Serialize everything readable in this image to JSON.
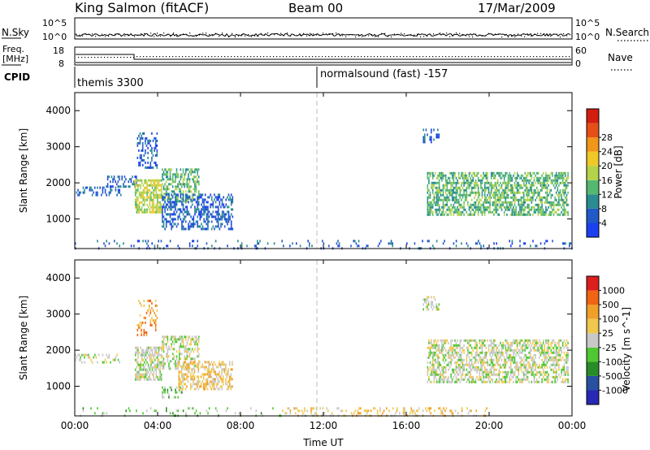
{
  "header": {
    "station": "King Salmon (fitACF)",
    "beam": "Beam 00",
    "date": "17/Mar/2009"
  },
  "noise_panel": {
    "left_label": "N.Sky",
    "right_label": "N.Search",
    "left_ticks": [
      "10^5",
      "10^0"
    ],
    "right_ticks": [
      "10^5",
      "10^0"
    ]
  },
  "freq_panel": {
    "left_label_line1": "Freq.",
    "left_label_line2": "[MHz]",
    "left_ticks": [
      "18",
      "8"
    ],
    "right_label": "Nave",
    "right_ticks": [
      "60",
      "0"
    ]
  },
  "cpid_panel": {
    "label": "CPID",
    "programs": [
      {
        "name": "themis 3300",
        "start_hour": 0
      },
      {
        "name": "normalsound (fast) -157",
        "start_hour": 12
      }
    ]
  },
  "time_axis": {
    "title": "Time UT",
    "ticks": [
      "00:00",
      "04:00",
      "08:00",
      "12:00",
      "16:00",
      "20:00",
      "00:00"
    ],
    "tick_hours": [
      0,
      4,
      8,
      12,
      16,
      20,
      24
    ],
    "data_end_hour": 24
  },
  "colors": {
    "dashed_line": "#bbbbbb",
    "ground_scatter": "#b4b4b4"
  },
  "chart_data": [
    {
      "type": "heatmap",
      "title": "Power",
      "xlabel": "Time UT",
      "ylabel": "Slant Range [km]",
      "xlim": [
        0,
        24
      ],
      "ylim": [
        180,
        4500
      ],
      "yticks": [
        1000,
        2000,
        3000,
        4000
      ],
      "colorbar": {
        "label": "Power [dB]",
        "ticks": [
          "4",
          "8",
          "12",
          "16",
          "20",
          "24",
          "28"
        ],
        "colors": [
          "#1c3ff0",
          "#2159c8",
          "#2a8c90",
          "#55b870",
          "#b4d24a",
          "#f0c828",
          "#f09618",
          "#e64f18",
          "#d21e10"
        ]
      },
      "regions": [
        {
          "t0": 0.0,
          "t1": 2.2,
          "r0": 1650,
          "r1": 1900,
          "level": 1,
          "density": 0.35
        },
        {
          "t0": 1.5,
          "t1": 3.0,
          "r0": 1900,
          "r1": 2200,
          "level": 1,
          "density": 0.3
        },
        {
          "t0": 2.9,
          "t1": 4.2,
          "r0": 1200,
          "r1": 2100,
          "level": 4,
          "density": 0.7
        },
        {
          "t0": 4.2,
          "t1": 6.0,
          "r0": 1500,
          "r1": 2400,
          "level": 3,
          "density": 0.55
        },
        {
          "t0": 3.0,
          "t1": 4.0,
          "r0": 2400,
          "r1": 3400,
          "level": 1,
          "density": 0.35
        },
        {
          "t0": 4.2,
          "t1": 7.6,
          "r0": 700,
          "r1": 1700,
          "level": 1,
          "density": 0.45
        },
        {
          "t0": 17.0,
          "t1": 23.8,
          "r0": 1150,
          "r1": 2300,
          "level": 3,
          "density": 0.6
        },
        {
          "t0": 16.8,
          "t1": 17.6,
          "r0": 3100,
          "r1": 3500,
          "level": 1,
          "density": 0.35
        },
        {
          "t0": 0.0,
          "t1": 24.0,
          "r0": 180,
          "r1": 420,
          "level": 1,
          "density": 0.12
        }
      ]
    },
    {
      "type": "heatmap",
      "title": "Velocity",
      "xlabel": "Time UT",
      "ylabel": "Slant Range [km]",
      "xlim": [
        0,
        24
      ],
      "ylim": [
        180,
        4500
      ],
      "yticks": [
        1000,
        2000,
        3000,
        4000
      ],
      "colorbar": {
        "label": "Velocity [m s^-1]",
        "ticks": [
          "1000",
          "500",
          "100",
          "25",
          "-25",
          "-100",
          "-500",
          "-1000"
        ],
        "colors": [
          "#2828b4",
          "#2850a0",
          "#288c28",
          "#50c832",
          "#c8c8c8",
          "#f0c850",
          "#f0a028",
          "#f06414",
          "#dc1e1e"
        ]
      },
      "regions": [
        {
          "t0": 0.0,
          "t1": 2.2,
          "r0": 1650,
          "r1": 1900,
          "level": 4,
          "density": 0.3
        },
        {
          "t0": 2.9,
          "t1": 4.2,
          "r0": 1200,
          "r1": 2100,
          "level": 4,
          "density": 0.65
        },
        {
          "t0": 4.2,
          "t1": 6.0,
          "r0": 1500,
          "r1": 2400,
          "level": 4,
          "density": 0.5
        },
        {
          "t0": 3.0,
          "t1": 4.0,
          "r0": 2400,
          "r1": 3400,
          "level": 6,
          "density": 0.25
        },
        {
          "t0": 4.2,
          "t1": 5.2,
          "r0": 700,
          "r1": 1000,
          "level": 3,
          "density": 0.35
        },
        {
          "t0": 5.0,
          "t1": 7.6,
          "r0": 900,
          "r1": 1700,
          "level": 5,
          "density": 0.5
        },
        {
          "t0": 17.0,
          "t1": 23.8,
          "r0": 1150,
          "r1": 2300,
          "level": 4,
          "density": 0.55
        },
        {
          "t0": 16.8,
          "t1": 17.6,
          "r0": 3100,
          "r1": 3500,
          "level": 4,
          "density": 0.3
        },
        {
          "t0": 10.0,
          "t1": 20.0,
          "r0": 180,
          "r1": 420,
          "level": 5,
          "density": 0.25
        },
        {
          "t0": 0.0,
          "t1": 10.0,
          "r0": 180,
          "r1": 420,
          "level": 3,
          "density": 0.1
        }
      ]
    }
  ]
}
